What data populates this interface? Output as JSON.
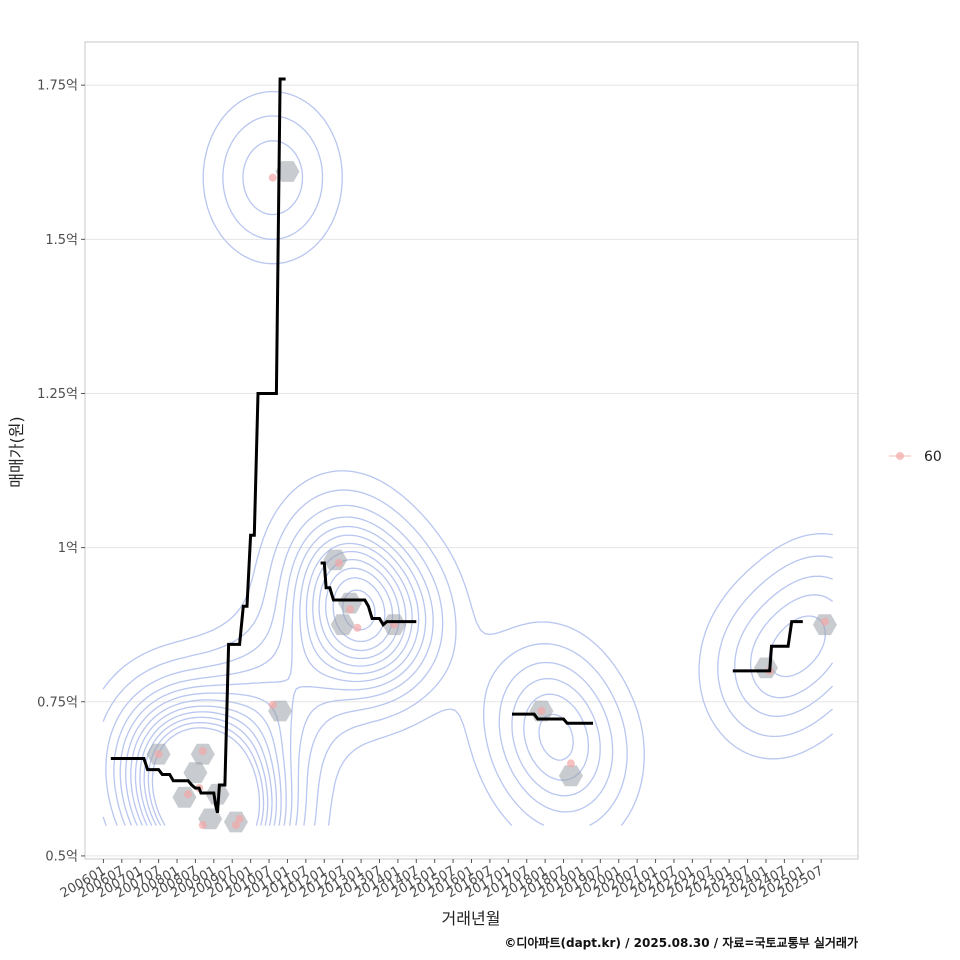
{
  "chart_data": {
    "type": "line",
    "xlabel": "거래년월",
    "ylabel": "매매가(원)",
    "caption": "©디아파트(dapt.kr) / 2025.08.30 / 자료=국토교통부 실거래가",
    "x_range": [
      2005.5,
      2026.5
    ],
    "ylim": [
      0.495,
      1.82
    ],
    "y_ticks": [
      {
        "value": 0.5,
        "label": "0.5억"
      },
      {
        "value": 0.75,
        "label": "0.75억"
      },
      {
        "value": 1.0,
        "label": "1억"
      },
      {
        "value": 1.25,
        "label": "1.25억"
      },
      {
        "value": 1.5,
        "label": "1.5억"
      },
      {
        "value": 1.75,
        "label": "1.75억"
      }
    ],
    "x_ticks": [
      "200601",
      "200607",
      "200701",
      "200707",
      "200801",
      "200807",
      "200901",
      "200907",
      "201001",
      "201007",
      "201101",
      "201107",
      "201201",
      "201207",
      "201301",
      "201307",
      "201401",
      "201407",
      "201501",
      "201507",
      "201601",
      "201607",
      "201701",
      "201707",
      "201801",
      "201807",
      "201901",
      "201907",
      "202001",
      "202007",
      "202101",
      "202107",
      "202201",
      "202207",
      "202301",
      "202307",
      "202401",
      "202407",
      "202501",
      "202507"
    ],
    "legend": {
      "position": "right",
      "entries": [
        {
          "label": "60",
          "color": "#f4a6a6"
        }
      ]
    },
    "grid": true,
    "series": [
      {
        "name": "60",
        "kind": "points",
        "points": [
          [
            2007.5,
            0.665
          ],
          [
            2008.3,
            0.6
          ],
          [
            2008.6,
            0.61
          ],
          [
            2008.7,
            0.67
          ],
          [
            2008.7,
            0.55
          ],
          [
            2009.6,
            0.55
          ],
          [
            2009.7,
            0.56
          ],
          [
            2010.6,
            0.745
          ],
          [
            2010.6,
            1.6
          ],
          [
            2012.4,
            0.975
          ],
          [
            2012.7,
            0.9
          ],
          [
            2012.9,
            0.87
          ],
          [
            2013.9,
            0.875
          ],
          [
            2017.9,
            0.735
          ],
          [
            2018.7,
            0.65
          ],
          [
            2024.1,
            0.8
          ],
          [
            2025.6,
            0.88
          ]
        ]
      },
      {
        "name": "hex-density",
        "kind": "hexbin",
        "points": [
          [
            2007.5,
            0.665
          ],
          [
            2008.2,
            0.595
          ],
          [
            2008.5,
            0.635
          ],
          [
            2008.7,
            0.665
          ],
          [
            2008.9,
            0.56
          ],
          [
            2009.1,
            0.6
          ],
          [
            2009.6,
            0.555
          ],
          [
            2010.8,
            0.735
          ],
          [
            2011.0,
            1.61
          ],
          [
            2012.3,
            0.98
          ],
          [
            2012.7,
            0.91
          ],
          [
            2012.5,
            0.875
          ],
          [
            2013.9,
            0.875
          ],
          [
            2017.9,
            0.735
          ],
          [
            2018.7,
            0.63
          ],
          [
            2024.0,
            0.805
          ],
          [
            2025.6,
            0.875
          ]
        ]
      },
      {
        "name": "median",
        "kind": "step",
        "segments": [
          [
            [
              2006.2,
              0.658
            ],
            [
              2007.1,
              0.658
            ],
            [
              2007.2,
              0.64
            ],
            [
              2007.5,
              0.64
            ],
            [
              2007.6,
              0.632
            ],
            [
              2007.8,
              0.632
            ],
            [
              2007.9,
              0.622
            ],
            [
              2008.3,
              0.622
            ],
            [
              2008.4,
              0.615
            ],
            [
              2008.5,
              0.61
            ],
            [
              2008.6,
              0.61
            ],
            [
              2008.65,
              0.602
            ],
            [
              2009.0,
              0.602
            ],
            [
              2009.05,
              0.582
            ],
            [
              2009.1,
              0.57
            ],
            [
              2009.15,
              0.615
            ],
            [
              2009.3,
              0.615
            ],
            [
              2009.4,
              0.843
            ],
            [
              2009.7,
              0.843
            ],
            [
              2009.8,
              0.905
            ],
            [
              2009.9,
              0.905
            ],
            [
              2010.0,
              1.02
            ],
            [
              2010.1,
              1.02
            ],
            [
              2010.2,
              1.25
            ],
            [
              2010.7,
              1.25
            ],
            [
              2010.8,
              1.76
            ],
            [
              2010.95,
              1.76
            ]
          ],
          [
            [
              2011.9,
              0.975
            ],
            [
              2012.0,
              0.975
            ],
            [
              2012.05,
              0.935
            ],
            [
              2012.15,
              0.935
            ],
            [
              2012.25,
              0.915
            ],
            [
              2013.1,
              0.915
            ],
            [
              2013.2,
              0.905
            ],
            [
              2013.3,
              0.885
            ],
            [
              2013.5,
              0.885
            ],
            [
              2013.6,
              0.875
            ],
            [
              2013.7,
              0.88
            ],
            [
              2014.5,
              0.88
            ]
          ],
          [
            [
              2017.1,
              0.73
            ],
            [
              2017.7,
              0.73
            ],
            [
              2017.8,
              0.722
            ],
            [
              2018.5,
              0.722
            ],
            [
              2018.6,
              0.715
            ],
            [
              2019.3,
              0.715
            ]
          ],
          [
            [
              2023.1,
              0.8
            ],
            [
              2024.1,
              0.8
            ],
            [
              2024.15,
              0.84
            ],
            [
              2024.6,
              0.84
            ],
            [
              2024.7,
              0.88
            ],
            [
              2025.0,
              0.88
            ]
          ]
        ]
      }
    ]
  }
}
